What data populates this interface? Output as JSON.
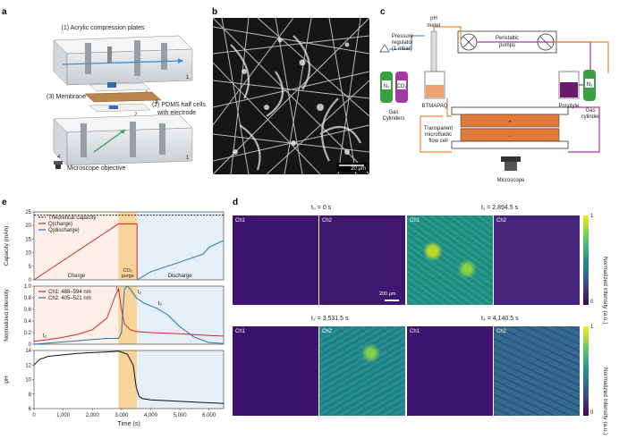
{
  "panel_labels": {
    "a": "a",
    "b": "b",
    "c": "c",
    "d": "d",
    "e": "e"
  },
  "panel_a": {
    "plates_label": "(1) Acrylic compression plates",
    "membrane_label": "(3) Membrane",
    "pdms_label_line1": "(2) PDMS half cells",
    "pdms_label_line2": "with electrode",
    "microscope_label": "Microscope objective",
    "num_1": "1",
    "num_2": "2",
    "num_3": "3",
    "num_4": "4"
  },
  "panel_b": {
    "scale_bar": "20 μm"
  },
  "panel_c": {
    "ph_meter_line1": "pH",
    "ph_meter_line2": "meter",
    "pressure_line1": "Pressure",
    "pressure_line2": "regulator",
    "pressure_line3": "(1 mbar)",
    "gas_cylinders_line1": "Gas",
    "gas_cylinders_line2": "Cylinders",
    "gas_n2": "N₂",
    "gas_co2": "CO₂",
    "tank_label": "BTMAPAQ",
    "pumps_line1": "Peristaltic",
    "pumps_line2": "pumps",
    "posolyte": "Posolyte",
    "gas_cylinder_line1": "Gas",
    "gas_cylinder_line2": "cylinder",
    "gas_n2_right": "N₂",
    "cell_line1": "Transparent",
    "cell_line2": "microfluidic",
    "cell_line3": "flow cell",
    "microscope": "Microscope",
    "plus": "+",
    "minus": "−"
  },
  "panel_d": {
    "titles": [
      "t₀ = 0 s",
      "t₁ = 2,894.5 s",
      "t₂ = 3,531.5 s",
      "t₃ = 4,140.5 s"
    ],
    "ch1": "Ch1",
    "ch2": "Ch2",
    "scale_bar": "200 μm",
    "colorbar_label": "Normalized intensity (a.u.)",
    "cb_max": "1",
    "cb_min": "0",
    "colors": {
      "dark": "#3b0f6f",
      "mid": "#21918c",
      "bright": "#fde725"
    }
  },
  "chart_data": [
    {
      "type": "line",
      "ylabel": "Capacity (mAh)",
      "ylim": [
        0,
        25
      ],
      "yticks": [
        "0",
        "5",
        "10",
        "15",
        "20",
        "25"
      ],
      "xlim": [
        0,
        6500
      ],
      "legend": [
        "Theoretical capacity",
        "Q(charge)",
        "Q(discharge)"
      ],
      "region_labels": {
        "charge": "Charge",
        "purge_line1": "CO₂",
        "purge_line2": "purge",
        "discharge": "Discharge"
      },
      "series": [
        {
          "name": "Theoretical capacity",
          "x": [
            0,
            6500
          ],
          "y": [
            23.8,
            23.8
          ],
          "color": "#222222"
        },
        {
          "name": "Q(charge)",
          "x": [
            0,
            2894,
            3531,
            3531
          ],
          "y": [
            0,
            20.6,
            20.6,
            0
          ],
          "color": "#d62728"
        },
        {
          "name": "Q(discharge)",
          "x": [
            3531,
            4000,
            5000,
            5800,
            6000,
            6500
          ],
          "y": [
            0,
            3.0,
            6.5,
            9.5,
            12,
            14.5
          ],
          "color": "#1f77b4"
        }
      ]
    },
    {
      "type": "line",
      "ylabel": "Normalized intensity",
      "ylim": [
        0,
        1
      ],
      "yticks": [
        "0",
        "0.2",
        "0.4",
        "0.6",
        "0.8",
        "1.0"
      ],
      "xlim": [
        0,
        6500
      ],
      "legend": [
        "Ch1: 488–594 nm",
        "Ch2: 405–521 nm"
      ],
      "annotations": [
        "t₀",
        "t₁",
        "t₂",
        "t₃"
      ],
      "series": [
        {
          "name": "Ch1: 488–594 nm",
          "x": [
            0,
            500,
            1000,
            1500,
            2000,
            2500,
            2800,
            2900,
            3000,
            3100,
            3300,
            3500,
            4000,
            5000,
            6000,
            6500
          ],
          "y": [
            0.05,
            0.08,
            0.12,
            0.17,
            0.25,
            0.45,
            0.85,
            0.95,
            0.6,
            0.35,
            0.25,
            0.22,
            0.2,
            0.18,
            0.15,
            0.14
          ],
          "color": "#d62728"
        },
        {
          "name": "Ch2: 405–521 nm",
          "x": [
            0,
            500,
            1000,
            1500,
            2000,
            2500,
            2900,
            3000,
            3100,
            3200,
            3300,
            3500,
            3800,
            4200,
            4600,
            5000,
            5500,
            6000,
            6500
          ],
          "y": [
            0.0,
            0.02,
            0.04,
            0.06,
            0.08,
            0.1,
            0.1,
            0.2,
            0.95,
            1.0,
            0.95,
            0.8,
            0.7,
            0.62,
            0.5,
            0.3,
            0.12,
            0.03,
            0.01
          ],
          "color": "#1f77b4"
        }
      ]
    },
    {
      "type": "line",
      "ylabel": "pH",
      "xlabel": "Time (s)",
      "ylim": [
        6,
        14
      ],
      "yticks": [
        "6",
        "8",
        "10",
        "12",
        "14"
      ],
      "xlim": [
        0,
        6500
      ],
      "xticks": [
        "0",
        "1,000",
        "2,000",
        "3,000",
        "4,000",
        "5,000",
        "6,000"
      ],
      "series": [
        {
          "name": "pH",
          "x": [
            0,
            200,
            500,
            1000,
            1500,
            2000,
            2500,
            2900,
            3200,
            3400,
            3500,
            3600,
            3700,
            4000,
            5000,
            6000,
            6500
          ],
          "y": [
            12.0,
            12.8,
            13.2,
            13.4,
            13.6,
            13.7,
            13.8,
            13.9,
            13.5,
            12.0,
            9.0,
            7.7,
            7.4,
            7.2,
            7.0,
            6.8,
            6.7
          ],
          "color": "#111111"
        }
      ]
    }
  ]
}
